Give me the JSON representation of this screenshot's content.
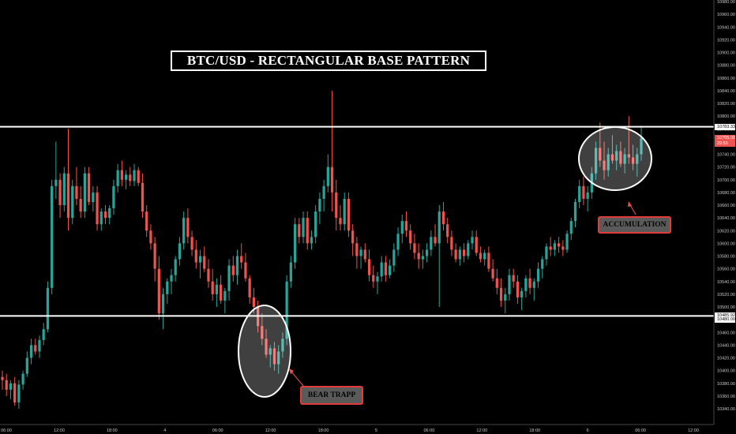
{
  "chart_data": {
    "type": "candlestick",
    "title": "BTC/USD - RECTANGULAR BASE PATTERN",
    "y_axis": {
      "min": 10340,
      "max": 10980,
      "step": 20,
      "position": "right",
      "ticks": [
        10340,
        10360,
        10380,
        10400,
        10420,
        10440,
        10460,
        10480,
        10500,
        10520,
        10540,
        10560,
        10580,
        10600,
        10620,
        10640,
        10660,
        10680,
        10700,
        10720,
        10740,
        10760,
        10780,
        10800,
        10820,
        10840,
        10860,
        10880,
        10900,
        10920,
        10940,
        10960,
        10980
      ]
    },
    "x_axis": {
      "tick_labels": [
        "06:00",
        "12:00",
        "18:00",
        "4",
        "06:00",
        "12:00",
        "18:00",
        "5",
        "06:00",
        "12:00",
        "18:00",
        "6",
        "06:00",
        "12:00"
      ]
    },
    "horizontal_lines": [
      {
        "name": "resistance",
        "value": 10783.33,
        "label": "10783.33",
        "color": "#ffffff"
      },
      {
        "name": "support",
        "value": 10485.92,
        "label": "10485.92",
        "color": "#ffffff"
      }
    ],
    "price_badges": [
      {
        "value": 10765,
        "label": "10765.00",
        "color": "#ef5350"
      },
      {
        "value": 10757,
        "label": "29:55",
        "color": "#ef5350"
      },
      {
        "value": 10480,
        "label": "10480.00",
        "color": "#ffffff"
      }
    ],
    "colors": {
      "up": "#26a69a",
      "down": "#ef5350",
      "background": "#000000",
      "annotation": "#ef5350"
    },
    "annotations": [
      {
        "name": "bear-trapp",
        "text": "BEAR TRAPP"
      },
      {
        "name": "accumulation",
        "text": "ACCUMULATION"
      }
    ],
    "candles": [
      {
        "o": 10390,
        "h": 10400,
        "l": 10370,
        "c": 10385
      },
      {
        "o": 10385,
        "h": 10395,
        "l": 10360,
        "c": 10370
      },
      {
        "o": 10370,
        "h": 10385,
        "l": 10355,
        "c": 10380
      },
      {
        "o": 10380,
        "h": 10390,
        "l": 10345,
        "c": 10350
      },
      {
        "o": 10350,
        "h": 10385,
        "l": 10340,
        "c": 10378
      },
      {
        "o": 10378,
        "h": 10400,
        "l": 10370,
        "c": 10395
      },
      {
        "o": 10395,
        "h": 10430,
        "l": 10390,
        "c": 10420
      },
      {
        "o": 10420,
        "h": 10450,
        "l": 10410,
        "c": 10440
      },
      {
        "o": 10440,
        "h": 10450,
        "l": 10425,
        "c": 10430
      },
      {
        "o": 10430,
        "h": 10455,
        "l": 10420,
        "c": 10448
      },
      {
        "o": 10448,
        "h": 10475,
        "l": 10440,
        "c": 10465
      },
      {
        "o": 10465,
        "h": 10540,
        "l": 10460,
        "c": 10530
      },
      {
        "o": 10530,
        "h": 10700,
        "l": 10520,
        "c": 10690
      },
      {
        "o": 10690,
        "h": 10760,
        "l": 10670,
        "c": 10700
      },
      {
        "o": 10700,
        "h": 10710,
        "l": 10640,
        "c": 10660
      },
      {
        "o": 10660,
        "h": 10720,
        "l": 10650,
        "c": 10710
      },
      {
        "o": 10710,
        "h": 10780,
        "l": 10620,
        "c": 10640
      },
      {
        "o": 10640,
        "h": 10700,
        "l": 10630,
        "c": 10690
      },
      {
        "o": 10690,
        "h": 10720,
        "l": 10660,
        "c": 10670
      },
      {
        "o": 10670,
        "h": 10690,
        "l": 10640,
        "c": 10650
      },
      {
        "o": 10650,
        "h": 10720,
        "l": 10640,
        "c": 10710
      },
      {
        "o": 10710,
        "h": 10720,
        "l": 10660,
        "c": 10665
      },
      {
        "o": 10665,
        "h": 10690,
        "l": 10650,
        "c": 10680
      },
      {
        "o": 10680,
        "h": 10690,
        "l": 10620,
        "c": 10630
      },
      {
        "o": 10630,
        "h": 10655,
        "l": 10620,
        "c": 10650
      },
      {
        "o": 10650,
        "h": 10660,
        "l": 10630,
        "c": 10640
      },
      {
        "o": 10640,
        "h": 10660,
        "l": 10630,
        "c": 10655
      },
      {
        "o": 10655,
        "h": 10700,
        "l": 10645,
        "c": 10690
      },
      {
        "o": 10690,
        "h": 10725,
        "l": 10680,
        "c": 10715
      },
      {
        "o": 10715,
        "h": 10730,
        "l": 10690,
        "c": 10700
      },
      {
        "o": 10700,
        "h": 10715,
        "l": 10685,
        "c": 10708
      },
      {
        "o": 10708,
        "h": 10720,
        "l": 10690,
        "c": 10698
      },
      {
        "o": 10698,
        "h": 10725,
        "l": 10690,
        "c": 10715
      },
      {
        "o": 10715,
        "h": 10720,
        "l": 10690,
        "c": 10695
      },
      {
        "o": 10695,
        "h": 10710,
        "l": 10640,
        "c": 10650
      },
      {
        "o": 10650,
        "h": 10660,
        "l": 10610,
        "c": 10620
      },
      {
        "o": 10620,
        "h": 10630,
        "l": 10590,
        "c": 10600
      },
      {
        "o": 10600,
        "h": 10610,
        "l": 10540,
        "c": 10560
      },
      {
        "o": 10560,
        "h": 10580,
        "l": 10480,
        "c": 10490
      },
      {
        "o": 10490,
        "h": 10530,
        "l": 10465,
        "c": 10520
      },
      {
        "o": 10520,
        "h": 10545,
        "l": 10505,
        "c": 10540
      },
      {
        "o": 10540,
        "h": 10560,
        "l": 10520,
        "c": 10550
      },
      {
        "o": 10550,
        "h": 10580,
        "l": 10540,
        "c": 10575
      },
      {
        "o": 10575,
        "h": 10610,
        "l": 10565,
        "c": 10600
      },
      {
        "o": 10600,
        "h": 10650,
        "l": 10590,
        "c": 10640
      },
      {
        "o": 10640,
        "h": 10655,
        "l": 10600,
        "c": 10610
      },
      {
        "o": 10610,
        "h": 10620,
        "l": 10580,
        "c": 10590
      },
      {
        "o": 10590,
        "h": 10605,
        "l": 10560,
        "c": 10570
      },
      {
        "o": 10570,
        "h": 10590,
        "l": 10545,
        "c": 10580
      },
      {
        "o": 10580,
        "h": 10595,
        "l": 10555,
        "c": 10560
      },
      {
        "o": 10560,
        "h": 10575,
        "l": 10530,
        "c": 10540
      },
      {
        "o": 10540,
        "h": 10560,
        "l": 10510,
        "c": 10520
      },
      {
        "o": 10520,
        "h": 10545,
        "l": 10500,
        "c": 10535
      },
      {
        "o": 10535,
        "h": 10550,
        "l": 10505,
        "c": 10510
      },
      {
        "o": 10510,
        "h": 10530,
        "l": 10490,
        "c": 10525
      },
      {
        "o": 10525,
        "h": 10575,
        "l": 10510,
        "c": 10565
      },
      {
        "o": 10565,
        "h": 10580,
        "l": 10540,
        "c": 10550
      },
      {
        "o": 10550,
        "h": 10590,
        "l": 10535,
        "c": 10580
      },
      {
        "o": 10580,
        "h": 10600,
        "l": 10560,
        "c": 10570
      },
      {
        "o": 10570,
        "h": 10585,
        "l": 10540,
        "c": 10545
      },
      {
        "o": 10545,
        "h": 10550,
        "l": 10505,
        "c": 10515
      },
      {
        "o": 10515,
        "h": 10530,
        "l": 10490,
        "c": 10500
      },
      {
        "o": 10500,
        "h": 10510,
        "l": 10460,
        "c": 10470
      },
      {
        "o": 10470,
        "h": 10490,
        "l": 10440,
        "c": 10450
      },
      {
        "o": 10450,
        "h": 10465,
        "l": 10420,
        "c": 10425
      },
      {
        "o": 10425,
        "h": 10440,
        "l": 10405,
        "c": 10435
      },
      {
        "o": 10435,
        "h": 10445,
        "l": 10400,
        "c": 10410
      },
      {
        "o": 10410,
        "h": 10440,
        "l": 10395,
        "c": 10430
      },
      {
        "o": 10430,
        "h": 10460,
        "l": 10420,
        "c": 10450
      },
      {
        "o": 10450,
        "h": 10550,
        "l": 10440,
        "c": 10540
      },
      {
        "o": 10540,
        "h": 10580,
        "l": 10530,
        "c": 10570
      },
      {
        "o": 10570,
        "h": 10640,
        "l": 10560,
        "c": 10630
      },
      {
        "o": 10630,
        "h": 10640,
        "l": 10600,
        "c": 10610
      },
      {
        "o": 10610,
        "h": 10650,
        "l": 10600,
        "c": 10640
      },
      {
        "o": 10640,
        "h": 10650,
        "l": 10590,
        "c": 10600
      },
      {
        "o": 10600,
        "h": 10620,
        "l": 10590,
        "c": 10610
      },
      {
        "o": 10610,
        "h": 10660,
        "l": 10600,
        "c": 10650
      },
      {
        "o": 10650,
        "h": 10680,
        "l": 10630,
        "c": 10670
      },
      {
        "o": 10670,
        "h": 10700,
        "l": 10650,
        "c": 10690
      },
      {
        "o": 10690,
        "h": 10740,
        "l": 10680,
        "c": 10720
      },
      {
        "o": 10720,
        "h": 10840,
        "l": 10650,
        "c": 10680
      },
      {
        "o": 10680,
        "h": 10700,
        "l": 10620,
        "c": 10640
      },
      {
        "o": 10640,
        "h": 10660,
        "l": 10620,
        "c": 10630
      },
      {
        "o": 10630,
        "h": 10680,
        "l": 10620,
        "c": 10670
      },
      {
        "o": 10670,
        "h": 10680,
        "l": 10610,
        "c": 10620
      },
      {
        "o": 10620,
        "h": 10630,
        "l": 10580,
        "c": 10600
      },
      {
        "o": 10600,
        "h": 10610,
        "l": 10560,
        "c": 10580
      },
      {
        "o": 10580,
        "h": 10595,
        "l": 10560,
        "c": 10590
      },
      {
        "o": 10590,
        "h": 10600,
        "l": 10570,
        "c": 10575
      },
      {
        "o": 10575,
        "h": 10590,
        "l": 10540,
        "c": 10550
      },
      {
        "o": 10550,
        "h": 10565,
        "l": 10530,
        "c": 10540
      },
      {
        "o": 10540,
        "h": 10555,
        "l": 10520,
        "c": 10548
      },
      {
        "o": 10548,
        "h": 10580,
        "l": 10540,
        "c": 10570
      },
      {
        "o": 10570,
        "h": 10580,
        "l": 10540,
        "c": 10550
      },
      {
        "o": 10550,
        "h": 10575,
        "l": 10545,
        "c": 10565
      },
      {
        "o": 10565,
        "h": 10600,
        "l": 10555,
        "c": 10590
      },
      {
        "o": 10590,
        "h": 10625,
        "l": 10580,
        "c": 10615
      },
      {
        "o": 10615,
        "h": 10645,
        "l": 10600,
        "c": 10635
      },
      {
        "o": 10635,
        "h": 10650,
        "l": 10610,
        "c": 10620
      },
      {
        "o": 10620,
        "h": 10630,
        "l": 10590,
        "c": 10600
      },
      {
        "o": 10600,
        "h": 10615,
        "l": 10575,
        "c": 10585
      },
      {
        "o": 10585,
        "h": 10600,
        "l": 10560,
        "c": 10575
      },
      {
        "o": 10575,
        "h": 10590,
        "l": 10560,
        "c": 10580
      },
      {
        "o": 10580,
        "h": 10600,
        "l": 10570,
        "c": 10590
      },
      {
        "o": 10590,
        "h": 10620,
        "l": 10580,
        "c": 10610
      },
      {
        "o": 10610,
        "h": 10630,
        "l": 10595,
        "c": 10600
      },
      {
        "o": 10600,
        "h": 10660,
        "l": 10500,
        "c": 10650
      },
      {
        "o": 10650,
        "h": 10665,
        "l": 10620,
        "c": 10630
      },
      {
        "o": 10630,
        "h": 10640,
        "l": 10600,
        "c": 10610
      },
      {
        "o": 10610,
        "h": 10620,
        "l": 10580,
        "c": 10590
      },
      {
        "o": 10590,
        "h": 10600,
        "l": 10570,
        "c": 10575
      },
      {
        "o": 10575,
        "h": 10595,
        "l": 10565,
        "c": 10590
      },
      {
        "o": 10590,
        "h": 10600,
        "l": 10570,
        "c": 10580
      },
      {
        "o": 10580,
        "h": 10605,
        "l": 10575,
        "c": 10600
      },
      {
        "o": 10600,
        "h": 10620,
        "l": 10590,
        "c": 10610
      },
      {
        "o": 10610,
        "h": 10620,
        "l": 10580,
        "c": 10585
      },
      {
        "o": 10585,
        "h": 10595,
        "l": 10570,
        "c": 10575
      },
      {
        "o": 10575,
        "h": 10590,
        "l": 10565,
        "c": 10585
      },
      {
        "o": 10585,
        "h": 10595,
        "l": 10555,
        "c": 10560
      },
      {
        "o": 10560,
        "h": 10575,
        "l": 10540,
        "c": 10545
      },
      {
        "o": 10545,
        "h": 10560,
        "l": 10520,
        "c": 10530
      },
      {
        "o": 10530,
        "h": 10545,
        "l": 10500,
        "c": 10510
      },
      {
        "o": 10510,
        "h": 10530,
        "l": 10490,
        "c": 10520
      },
      {
        "o": 10520,
        "h": 10560,
        "l": 10510,
        "c": 10550
      },
      {
        "o": 10550,
        "h": 10560,
        "l": 10530,
        "c": 10540
      },
      {
        "o": 10540,
        "h": 10550,
        "l": 10505,
        "c": 10515
      },
      {
        "o": 10515,
        "h": 10530,
        "l": 10495,
        "c": 10525
      },
      {
        "o": 10525,
        "h": 10550,
        "l": 10515,
        "c": 10545
      },
      {
        "o": 10545,
        "h": 10560,
        "l": 10520,
        "c": 10530
      },
      {
        "o": 10530,
        "h": 10545,
        "l": 10510,
        "c": 10540
      },
      {
        "o": 10540,
        "h": 10570,
        "l": 10530,
        "c": 10560
      },
      {
        "o": 10560,
        "h": 10580,
        "l": 10545,
        "c": 10575
      },
      {
        "o": 10575,
        "h": 10600,
        "l": 10565,
        "c": 10595
      },
      {
        "o": 10595,
        "h": 10610,
        "l": 10580,
        "c": 10590
      },
      {
        "o": 10590,
        "h": 10605,
        "l": 10580,
        "c": 10600
      },
      {
        "o": 10600,
        "h": 10610,
        "l": 10585,
        "c": 10595
      },
      {
        "o": 10595,
        "h": 10605,
        "l": 10580,
        "c": 10590
      },
      {
        "o": 10590,
        "h": 10620,
        "l": 10585,
        "c": 10615
      },
      {
        "o": 10615,
        "h": 10640,
        "l": 10605,
        "c": 10635
      },
      {
        "o": 10635,
        "h": 10670,
        "l": 10625,
        "c": 10665
      },
      {
        "o": 10665,
        "h": 10700,
        "l": 10655,
        "c": 10690
      },
      {
        "o": 10690,
        "h": 10705,
        "l": 10660,
        "c": 10670
      },
      {
        "o": 10670,
        "h": 10690,
        "l": 10650,
        "c": 10680
      },
      {
        "o": 10680,
        "h": 10720,
        "l": 10670,
        "c": 10710
      },
      {
        "o": 10710,
        "h": 10760,
        "l": 10700,
        "c": 10750
      },
      {
        "o": 10750,
        "h": 10790,
        "l": 10720,
        "c": 10730
      },
      {
        "o": 10730,
        "h": 10760,
        "l": 10700,
        "c": 10715
      },
      {
        "o": 10715,
        "h": 10750,
        "l": 10705,
        "c": 10740
      },
      {
        "o": 10740,
        "h": 10770,
        "l": 10725,
        "c": 10730
      },
      {
        "o": 10730,
        "h": 10755,
        "l": 10715,
        "c": 10745
      },
      {
        "o": 10745,
        "h": 10760,
        "l": 10720,
        "c": 10725
      },
      {
        "o": 10725,
        "h": 10750,
        "l": 10710,
        "c": 10740
      },
      {
        "o": 10740,
        "h": 10800,
        "l": 10725,
        "c": 10735
      },
      {
        "o": 10735,
        "h": 10755,
        "l": 10715,
        "c": 10725
      },
      {
        "o": 10725,
        "h": 10750,
        "l": 10705,
        "c": 10740
      },
      {
        "o": 10740,
        "h": 10785,
        "l": 10730,
        "c": 10765
      }
    ]
  }
}
